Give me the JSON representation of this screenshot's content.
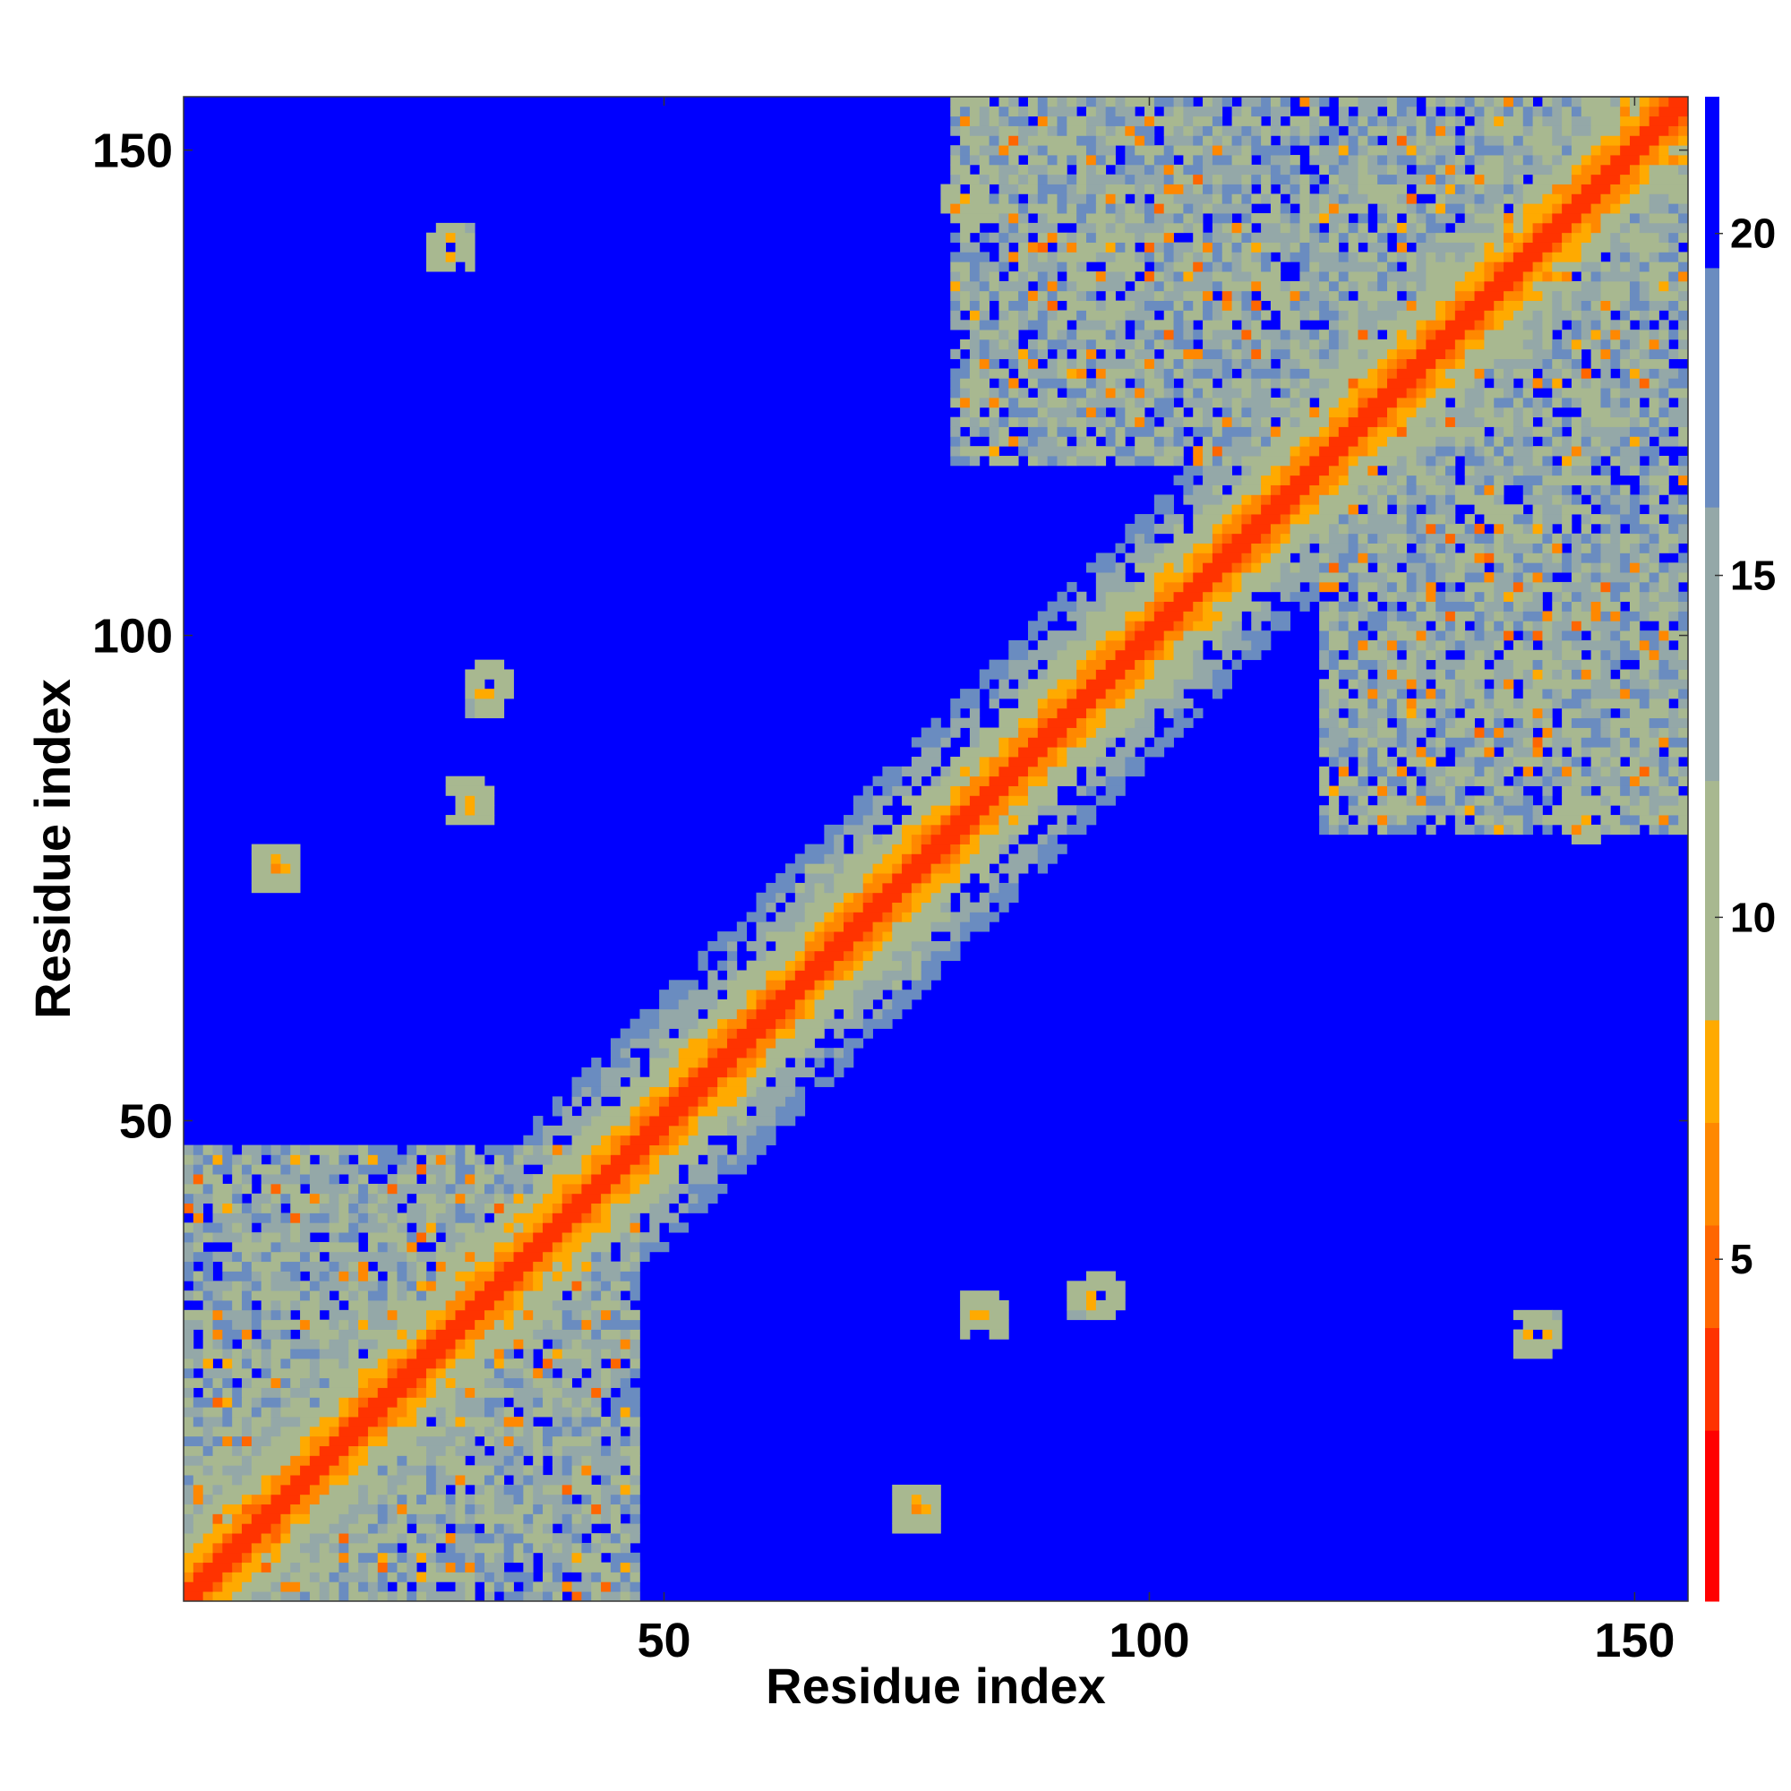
{
  "chart_data": {
    "type": "heatmap",
    "xlabel": "Residue index",
    "ylabel": "Residue index",
    "xlim": [
      1,
      155
    ],
    "ylim": [
      1,
      155
    ],
    "x_ticks": [
      "50",
      "100",
      "150"
    ],
    "y_ticks": [
      "50",
      "100",
      "150"
    ],
    "x_tick_values": [
      50,
      100,
      150
    ],
    "y_tick_values": [
      50,
      100,
      150
    ],
    "colorbar": {
      "range": [
        0,
        22
      ],
      "ticks": [
        "5",
        "10",
        "15",
        "20"
      ],
      "tick_values": [
        5,
        10,
        15,
        20
      ],
      "colors": [
        "#ff0000",
        "#ff3300",
        "#ff6600",
        "#ff8800",
        "#ffaa00",
        "#a8b890",
        "#94a8a8",
        "#6a8cc0",
        "#0000ff"
      ]
    },
    "background_value": 22,
    "features": [
      {
        "kind": "diagonal",
        "description": "main diagonal band",
        "from": [
          1,
          1
        ],
        "to": [
          155,
          155
        ]
      },
      {
        "kind": "block",
        "x": [
          1,
          47
        ],
        "y": [
          1,
          47
        ]
      },
      {
        "kind": "block",
        "x": [
          64,
          76
        ],
        "y": [
          64,
          76
        ]
      },
      {
        "kind": "block",
        "x": [
          80,
          118
        ],
        "y": [
          118,
          155
        ]
      },
      {
        "kind": "block",
        "x": [
          118,
          155
        ],
        "y": [
          80,
          118
        ]
      },
      {
        "kind": "block",
        "x": [
          118,
          155
        ],
        "y": [
          118,
          155
        ]
      },
      {
        "kind": "spot",
        "x": 32,
        "y": 94
      },
      {
        "kind": "spot",
        "x": 30,
        "y": 83
      },
      {
        "kind": "spot",
        "x": 10,
        "y": 76
      },
      {
        "kind": "spot",
        "x": 83,
        "y": 30
      },
      {
        "kind": "spot",
        "x": 95,
        "y": 32
      },
      {
        "kind": "spot",
        "x": 76,
        "y": 10
      },
      {
        "kind": "spot",
        "x": 145,
        "y": 81
      },
      {
        "kind": "spot",
        "x": 140,
        "y": 28
      }
    ]
  }
}
